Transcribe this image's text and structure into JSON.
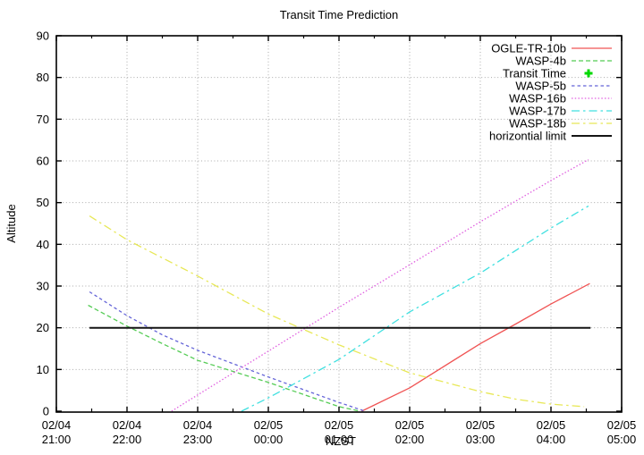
{
  "title": "Transit Time Prediction",
  "axes": {
    "xlabel": "NZST",
    "ylabel": "Altitude",
    "ylim": [
      0,
      90
    ],
    "y_ticks": [
      "0",
      "10",
      "20",
      "30",
      "40",
      "50",
      "60",
      "70",
      "80",
      "90"
    ],
    "x_ticks": [
      {
        "date": "02/04",
        "time": "21:00"
      },
      {
        "date": "02/04",
        "time": "22:00"
      },
      {
        "date": "02/04",
        "time": "23:00"
      },
      {
        "date": "02/05",
        "time": "00:00"
      },
      {
        "date": "02/05",
        "time": "01:00"
      },
      {
        "date": "02/05",
        "time": "02:00"
      },
      {
        "date": "02/05",
        "time": "03:00"
      },
      {
        "date": "02/05",
        "time": "04:00"
      },
      {
        "date": "02/05",
        "time": "05:00"
      }
    ],
    "grid": "dotted"
  },
  "chart_data": {
    "type": "line",
    "title": "Transit Time Prediction",
    "xlabel": "NZST",
    "ylabel": "Altitude",
    "ylim": [
      0,
      90
    ],
    "x_range_labels": [
      "02/04 21:00",
      "02/05 05:00"
    ],
    "x_units": "hours after 02/04 21:00 NZST",
    "legend_position": "top-right",
    "series": [
      {
        "name": "OGLE-TR-10b",
        "color": "#f05454",
        "style": "solid",
        "kind": "line",
        "points": [
          [
            4.32,
            0
          ],
          [
            5,
            5.6
          ],
          [
            6,
            16.2
          ],
          [
            6.5,
            20.9
          ],
          [
            7,
            25.7
          ],
          [
            7.55,
            30.6
          ]
        ]
      },
      {
        "name": "WASP-4b",
        "color": "#55cc55",
        "style": "dashed",
        "kind": "line",
        "points": [
          [
            0.45,
            25.4
          ],
          [
            1,
            20.4
          ],
          [
            1.5,
            16.2
          ],
          [
            2,
            12.2
          ],
          [
            3,
            6.9
          ],
          [
            4,
            1.1
          ],
          [
            4.3,
            0
          ]
        ]
      },
      {
        "name": "Transit Time",
        "color": "#00d800",
        "style": "filled-plus-marker",
        "kind": "marker",
        "points": []
      },
      {
        "name": "WASP-5b",
        "color": "#6565d8",
        "style": "short-dashed",
        "kind": "line",
        "points": [
          [
            0.47,
            28.6
          ],
          [
            1,
            22.9
          ],
          [
            1.5,
            18.3
          ],
          [
            2,
            14.6
          ],
          [
            3,
            8.2
          ],
          [
            4,
            2.1
          ],
          [
            4.37,
            0
          ]
        ]
      },
      {
        "name": "WASP-16b",
        "color": "#e060e0",
        "style": "dotted",
        "kind": "line",
        "points": [
          [
            1.63,
            0
          ],
          [
            2,
            3.9
          ],
          [
            3,
            14.4
          ],
          [
            4,
            24.9
          ],
          [
            5,
            35.1
          ],
          [
            6,
            45.4
          ],
          [
            7,
            55.3
          ],
          [
            7.53,
            60.3
          ]
        ]
      },
      {
        "name": "WASP-17b",
        "color": "#40e0e0",
        "style": "dash-dot",
        "kind": "line",
        "points": [
          [
            2.62,
            0
          ],
          [
            3,
            3.2
          ],
          [
            4,
            12.4
          ],
          [
            5,
            23.8
          ],
          [
            6,
            33.1
          ],
          [
            7,
            43.9
          ],
          [
            7.53,
            49.2
          ]
        ]
      },
      {
        "name": "WASP-18b",
        "color": "#e8e858",
        "style": "dash-dot",
        "kind": "line",
        "points": [
          [
            0.47,
            46.8
          ],
          [
            1,
            41.1
          ],
          [
            2,
            32.4
          ],
          [
            3,
            23.3
          ],
          [
            4,
            15.9
          ],
          [
            5,
            9.2
          ],
          [
            6,
            4.7
          ],
          [
            6.5,
            2.9
          ],
          [
            7,
            1.7
          ],
          [
            7.47,
            1.1
          ]
        ]
      },
      {
        "name": "horizontial limit",
        "color": "#151515",
        "style": "solid",
        "kind": "line",
        "points": [
          [
            0.47,
            20
          ],
          [
            7.56,
            20
          ]
        ]
      }
    ]
  }
}
